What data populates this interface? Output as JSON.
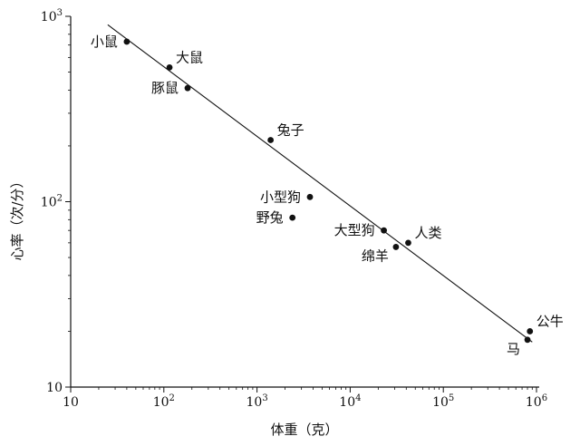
{
  "chart_data": {
    "type": "scatter",
    "title": "",
    "xlabel": "体重（克）",
    "ylabel": "心率（次/分）",
    "x_scale": "log",
    "y_scale": "log",
    "xlim": [
      10,
      1000000
    ],
    "ylim": [
      10,
      1000
    ],
    "grid": false,
    "x_ticks": [
      {
        "value": 10,
        "base": "10",
        "exp": ""
      },
      {
        "value": 100,
        "base": "10",
        "exp": "2"
      },
      {
        "value": 1000,
        "base": "10",
        "exp": "3"
      },
      {
        "value": 10000,
        "base": "10",
        "exp": "4"
      },
      {
        "value": 100000,
        "base": "10",
        "exp": "5"
      },
      {
        "value": 1000000,
        "base": "10",
        "exp": "6"
      }
    ],
    "y_ticks": [
      {
        "value": 10,
        "base": "10",
        "exp": ""
      },
      {
        "value": 100,
        "base": "10",
        "exp": "2"
      },
      {
        "value": 1000,
        "base": "10",
        "exp": "3"
      }
    ],
    "points": [
      {
        "label": "小鼠",
        "x": 40,
        "y": 730,
        "label_pos": "left"
      },
      {
        "label": "大鼠",
        "x": 115,
        "y": 530,
        "label_pos": "above-right"
      },
      {
        "label": "豚鼠",
        "x": 180,
        "y": 410,
        "label_pos": "left"
      },
      {
        "label": "兔子",
        "x": 1400,
        "y": 215,
        "label_pos": "above-right"
      },
      {
        "label": "小型狗",
        "x": 3700,
        "y": 106,
        "label_pos": "left"
      },
      {
        "label": "野兔",
        "x": 2400,
        "y": 82,
        "label_pos": "left"
      },
      {
        "label": "大型狗",
        "x": 23000,
        "y": 70,
        "label_pos": "left"
      },
      {
        "label": "人类",
        "x": 42000,
        "y": 60,
        "label_pos": "above-right"
      },
      {
        "label": "绵羊",
        "x": 31000,
        "y": 57,
        "label_pos": "below-left"
      },
      {
        "label": "公牛",
        "x": 850000,
        "y": 20,
        "label_pos": "above-right"
      },
      {
        "label": "马",
        "x": 800000,
        "y": 18,
        "label_pos": "below-left"
      }
    ],
    "trend_line": {
      "x": [
        25,
        900000
      ],
      "y": [
        900,
        17.5
      ]
    }
  }
}
